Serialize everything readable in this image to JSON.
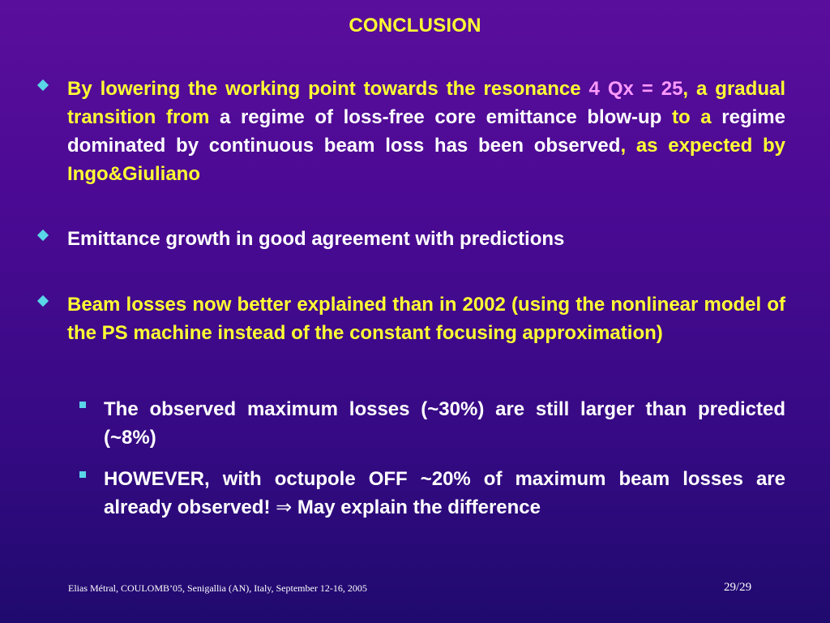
{
  "slide": {
    "title": "CONCLUSION"
  },
  "bullets": {
    "b1": {
      "seg1": "By lowering the working point towards the resonance ",
      "seg2": "4 Qx = 25",
      "seg3": ", a gradual transition from ",
      "seg4": "a regime of loss-free core emittance blow-up",
      "seg5": " to a ",
      "seg6": "regime dominated by continuous beam loss has been observed",
      "seg7": ", as expected by Ingo&Giuliano"
    },
    "b2": {
      "text": "Emittance growth in good agreement with predictions"
    },
    "b3": {
      "text": "Beam losses now better explained than in 2002 (using the nonlinear model of the PS machine instead of the constant focusing approximation)"
    },
    "sub1": {
      "text": "The observed maximum losses (~30%) are still larger than predicted (~8%)"
    },
    "sub2": {
      "text_before": "HOWEVER, with octupole OFF ~20% of maximum beam losses are already observed! ",
      "arrow": "⇒",
      "text_after": " May explain the difference"
    }
  },
  "footer": {
    "left": "Elias Métral, COULOMB’05, Senigallia (AN), Italy, September 12-16, 2005",
    "page": "29/29"
  },
  "colors": {
    "background_top": "#5a0f9c",
    "background_bottom": "#1f0a6e",
    "title_yellow": "#ffff33",
    "highlight_pink": "#ff99ff",
    "bullet_cyan": "#5ad6e8",
    "text_white": "#ffffff"
  },
  "icons": {
    "bullet": "diamond-bullet-icon",
    "sub_bullet": "square-bullet-icon"
  }
}
